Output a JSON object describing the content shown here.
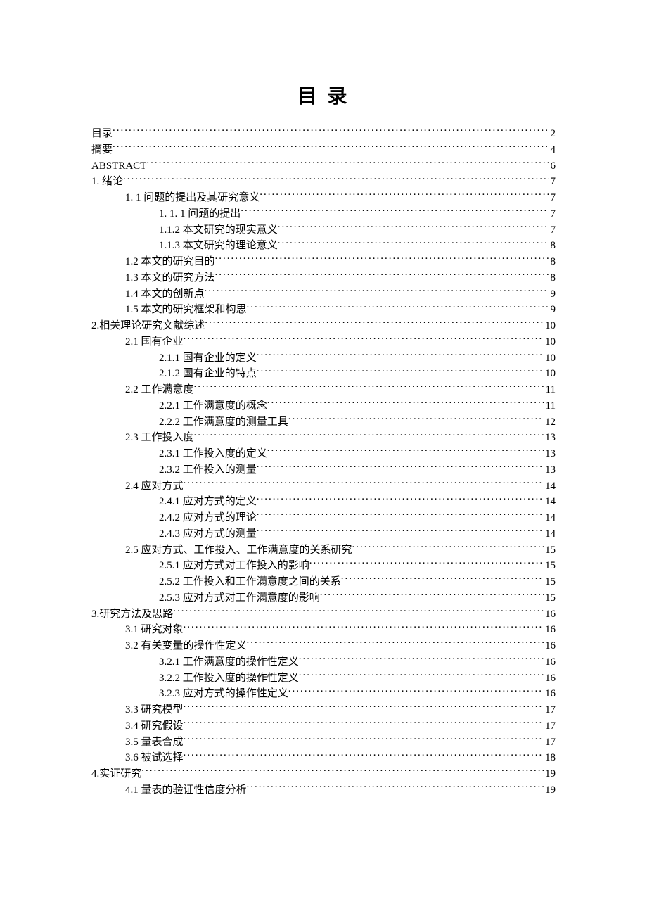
{
  "title": "目 录",
  "entries": [
    {
      "label": "目录",
      "page": "2",
      "level": 0
    },
    {
      "label": "摘要",
      "page": "4",
      "level": 0
    },
    {
      "label": "ABSTRACT",
      "page": "6",
      "level": 0
    },
    {
      "label": "1. 绪论",
      "page": "7",
      "level": 0
    },
    {
      "label": "1. 1 问题的提出及其研究意义",
      "page": "7",
      "level": 1
    },
    {
      "label": "1. 1. 1 问题的提出",
      "page": "7",
      "level": 2
    },
    {
      "label": "1.1.2 本文研究的现实意义",
      "page": "7",
      "level": 2
    },
    {
      "label": "1.1.3 本文研究的理论意义",
      "page": "8",
      "level": 2
    },
    {
      "label": "1.2 本文的研究目的",
      "page": "8",
      "level": 1
    },
    {
      "label": "1.3 本文的研究方法",
      "page": "8",
      "level": 1
    },
    {
      "label": "1.4 本文的创新点",
      "page": "9",
      "level": 1
    },
    {
      "label": "1.5 本文的研究框架和构思",
      "page": "9",
      "level": 1
    },
    {
      "label": "2.相关理论研究文献综述",
      "page": "10",
      "level": 0
    },
    {
      "label": "2.1 国有企业",
      "page": "10",
      "level": 1
    },
    {
      "label": "2.1.1 国有企业的定义",
      "page": "10",
      "level": 2
    },
    {
      "label": "2.1.2 国有企业的特点",
      "page": "10",
      "level": 2
    },
    {
      "label": "2.2 工作满意度",
      "page": "11",
      "level": 1
    },
    {
      "label": "2.2.1 工作满意度的概念",
      "page": "11",
      "level": 2
    },
    {
      "label": "2.2.2 工作满意度的测量工具",
      "page": "12",
      "level": 2
    },
    {
      "label": "2.3 工作投入度",
      "page": "13",
      "level": 1
    },
    {
      "label": "2.3.1 工作投入度的定义",
      "page": "13",
      "level": 2
    },
    {
      "label": "2.3.2 工作投入的测量",
      "page": "13",
      "level": 2
    },
    {
      "label": "2.4 应对方式",
      "page": "14",
      "level": 1
    },
    {
      "label": "2.4.1 应对方式的定义",
      "page": "14",
      "level": 2
    },
    {
      "label": "2.4.2 应对方式的理论",
      "page": "14",
      "level": 2
    },
    {
      "label": "2.4.3 应对方式的测量",
      "page": "14",
      "level": 2
    },
    {
      "label": "2.5 应对方式、工作投入、工作满意度的关系研究",
      "page": "15",
      "level": 1
    },
    {
      "label": "2.5.1 应对方式对工作投入的影响",
      "page": "15",
      "level": 2
    },
    {
      "label": "2.5.2 工作投入和工作满意度之间的关系",
      "page": "15",
      "level": 2
    },
    {
      "label": "2.5.3 应对方式对工作满意度的影响",
      "page": "15",
      "level": 2
    },
    {
      "label": "3.研究方法及思路",
      "page": "16",
      "level": 0
    },
    {
      "label": "3.1 研究对象",
      "page": "16",
      "level": 1
    },
    {
      "label": "3.2 有关变量的操作性定义",
      "page": "16",
      "level": 1
    },
    {
      "label": "3.2.1 工作满意度的操作性定义",
      "page": "16",
      "level": 2
    },
    {
      "label": "3.2.2 工作投入度的操作性定义",
      "page": "16",
      "level": 2
    },
    {
      "label": "3.2.3 应对方式的操作性定义",
      "page": "16",
      "level": 2
    },
    {
      "label": "3.3 研究模型",
      "page": "17",
      "level": 1
    },
    {
      "label": "3.4 研究假设",
      "page": "17",
      "level": 1
    },
    {
      "label": "3.5 量表合成",
      "page": "17",
      "level": 1
    },
    {
      "label": "3.6 被试选择",
      "page": "18",
      "level": 1
    },
    {
      "label": "4.实证研究",
      "page": "19",
      "level": 0
    },
    {
      "label": "4.1 量表的验证性信度分析",
      "page": "19",
      "level": 1
    }
  ]
}
